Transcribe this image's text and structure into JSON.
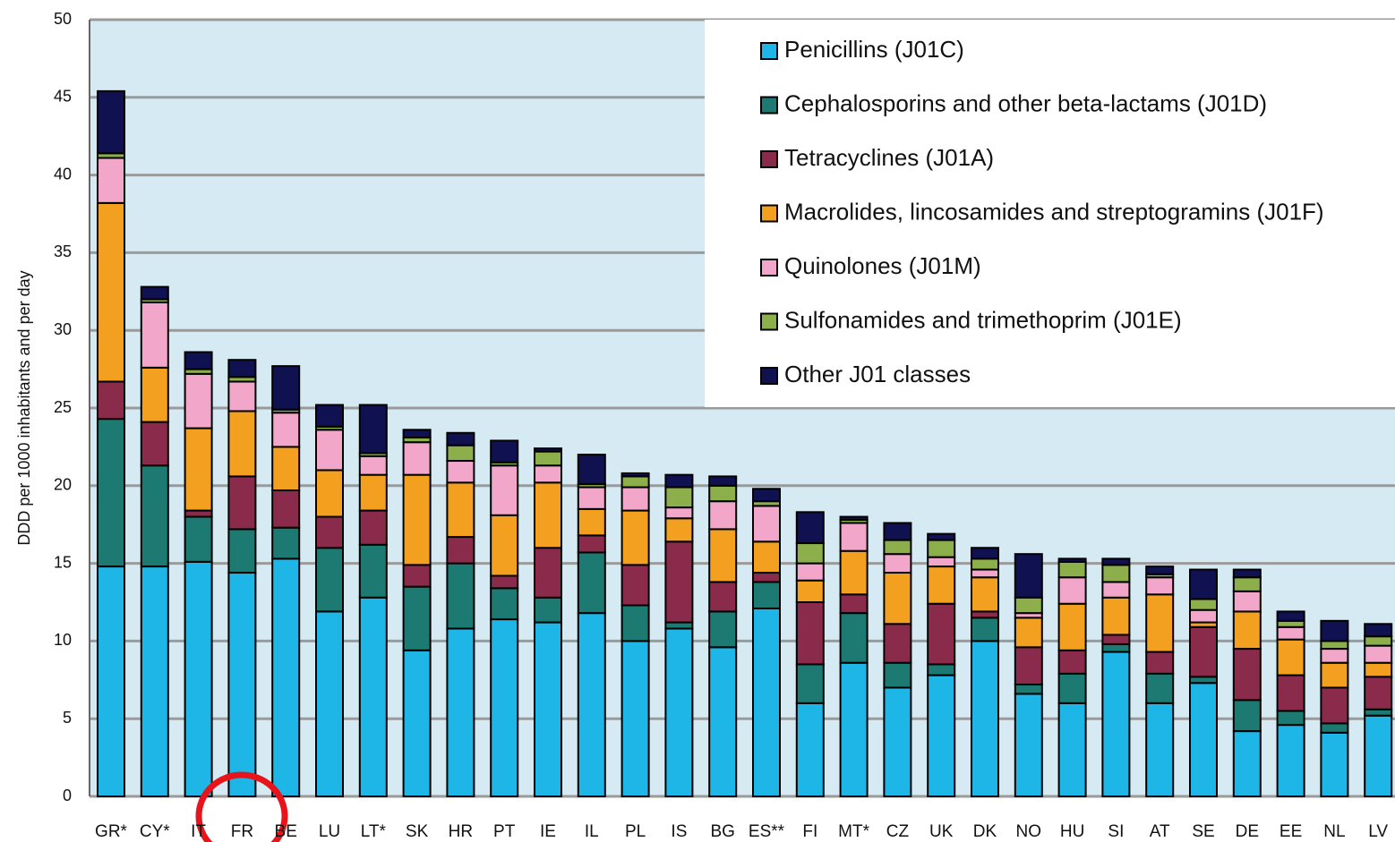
{
  "chart_data": {
    "type": "bar",
    "stacked": true,
    "y_label": "DDD per 1000 inhabitants and per day",
    "categories": [
      "GR*",
      "CY*",
      "IT",
      "FR",
      "BE",
      "LU",
      "LT*",
      "SK",
      "HR",
      "PT",
      "IE",
      "IL",
      "PL",
      "IS",
      "BG",
      "ES**",
      "FI",
      "MT*",
      "CZ",
      "UK",
      "DK",
      "NO",
      "HU",
      "SI",
      "AT",
      "SE",
      "DE",
      "EE",
      "NL",
      "LV"
    ],
    "series": [
      {
        "name": "Penicillins (J01C)",
        "color": "#1eb6e6",
        "values": [
          14.8,
          14.8,
          15.1,
          14.4,
          15.3,
          11.9,
          12.8,
          9.4,
          10.8,
          11.4,
          11.2,
          11.8,
          10.0,
          10.8,
          9.6,
          12.1,
          6.0,
          8.6,
          7.0,
          7.8,
          10.0,
          6.6,
          6.0,
          9.3,
          6.0,
          7.3,
          4.2,
          4.6,
          4.1,
          5.2
        ]
      },
      {
        "name": "Cephalosporins and other beta-lactams (J01D)",
        "color": "#1d7a72",
        "values": [
          9.5,
          6.5,
          2.9,
          2.8,
          2.0,
          4.1,
          3.4,
          4.1,
          4.2,
          2.0,
          1.6,
          3.9,
          2.3,
          0.4,
          2.3,
          1.7,
          2.5,
          3.2,
          1.6,
          0.7,
          1.5,
          0.6,
          1.9,
          0.5,
          1.9,
          0.4,
          2.0,
          0.9,
          0.6,
          0.4
        ]
      },
      {
        "name": "Tetracyclines (J01A)",
        "color": "#8b2b4c",
        "values": [
          2.4,
          2.8,
          0.4,
          3.4,
          2.4,
          2.0,
          2.2,
          1.4,
          1.7,
          0.8,
          3.2,
          1.1,
          2.6,
          5.2,
          1.9,
          0.6,
          4.0,
          1.2,
          2.5,
          3.9,
          0.4,
          2.4,
          1.5,
          0.6,
          1.4,
          3.2,
          3.3,
          2.3,
          2.3,
          2.1
        ]
      },
      {
        "name": "Macrolides, lincosamides and streptogramins (J01F)",
        "color": "#f3a020",
        "values": [
          11.5,
          3.5,
          5.3,
          4.2,
          2.8,
          3.0,
          2.3,
          5.8,
          3.5,
          3.9,
          4.2,
          1.7,
          3.5,
          1.5,
          3.4,
          2.0,
          1.4,
          2.8,
          3.3,
          2.4,
          2.2,
          1.9,
          3.0,
          2.4,
          3.7,
          0.3,
          2.4,
          2.3,
          1.6,
          0.9
        ]
      },
      {
        "name": "Quinolones (J01M)",
        "color": "#f2a6c9",
        "values": [
          2.9,
          4.2,
          3.5,
          1.9,
          2.2,
          2.6,
          1.2,
          2.1,
          1.4,
          3.2,
          1.1,
          1.4,
          1.5,
          0.7,
          1.8,
          2.3,
          1.1,
          1.8,
          1.2,
          0.6,
          0.5,
          0.3,
          1.7,
          1.0,
          1.1,
          0.8,
          1.3,
          0.8,
          0.9,
          1.1
        ]
      },
      {
        "name": "Sulfonamides and trimethoprim (J01E)",
        "color": "#8cae4b",
        "values": [
          0.3,
          0.2,
          0.3,
          0.3,
          0.2,
          0.2,
          0.2,
          0.3,
          1.0,
          0.2,
          0.9,
          0.2,
          0.7,
          1.3,
          1.0,
          0.3,
          1.3,
          0.2,
          0.9,
          1.1,
          0.7,
          1.0,
          1.0,
          1.1,
          0.2,
          0.7,
          0.9,
          0.4,
          0.5,
          0.6
        ]
      },
      {
        "name": "Other J01 classes",
        "color": "#0f1150",
        "values": [
          4.0,
          0.8,
          1.1,
          1.1,
          2.8,
          1.4,
          3.1,
          0.5,
          0.8,
          1.4,
          0.2,
          1.9,
          0.2,
          0.8,
          0.6,
          0.8,
          2.0,
          0.2,
          1.1,
          0.4,
          0.7,
          2.8,
          0.2,
          0.4,
          0.5,
          1.9,
          0.5,
          0.6,
          1.3,
          0.8
        ]
      }
    ],
    "ylim": [
      0,
      50
    ],
    "yticks": [
      0,
      5,
      10,
      15,
      20,
      25,
      30,
      35,
      40,
      45,
      50
    ],
    "grid": true,
    "legend": "upper right"
  }
}
